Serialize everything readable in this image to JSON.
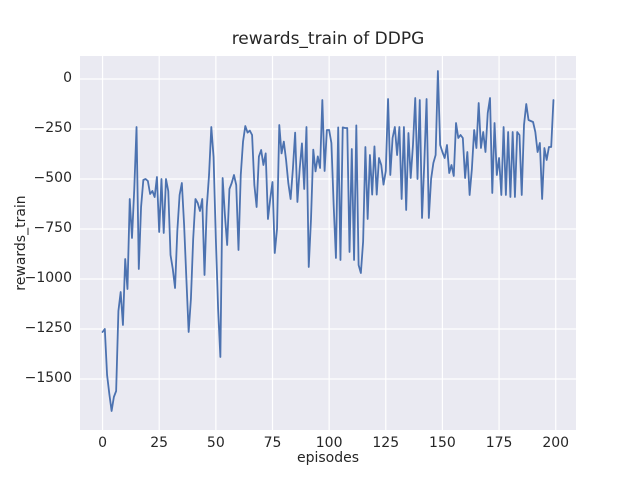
{
  "chart_data": {
    "type": "line",
    "title": "rewards_train of DDPG",
    "xlabel": "episodes",
    "ylabel": "rewards_train",
    "series": [
      {
        "name": "rewards_train",
        "x_start": 0,
        "x_step": 1,
        "values": [
          -1265,
          -1250,
          -1480,
          -1575,
          -1660,
          -1590,
          -1560,
          -1160,
          -1065,
          -1230,
          -900,
          -1050,
          -600,
          -795,
          -550,
          -240,
          -950,
          -640,
          -505,
          -500,
          -510,
          -575,
          -560,
          -590,
          -490,
          -765,
          -500,
          -770,
          -500,
          -560,
          -880,
          -950,
          -1045,
          -760,
          -580,
          -520,
          -730,
          -1000,
          -1265,
          -1100,
          -800,
          -600,
          -620,
          -660,
          -600,
          -980,
          -640,
          -480,
          -240,
          -390,
          -800,
          -1150,
          -1390,
          -495,
          -680,
          -830,
          -550,
          -520,
          -480,
          -530,
          -855,
          -480,
          -313,
          -235,
          -268,
          -258,
          -280,
          -530,
          -640,
          -388,
          -355,
          -430,
          -372,
          -700,
          -600,
          -515,
          -870,
          -750,
          -230,
          -372,
          -313,
          -405,
          -522,
          -600,
          -450,
          -268,
          -615,
          -450,
          -322,
          -550,
          -240,
          -940,
          -700,
          -353,
          -462,
          -387,
          -445,
          -105,
          -460,
          -255,
          -255,
          -320,
          -630,
          -895,
          -242,
          -905,
          -242,
          -245,
          -245,
          -865,
          -350,
          -905,
          -232,
          -930,
          -970,
          -813,
          -340,
          -700,
          -380,
          -578,
          -337,
          -578,
          -395,
          -430,
          -528,
          -460,
          -100,
          -480,
          -295,
          -240,
          -380,
          -240,
          -600,
          -240,
          -655,
          -270,
          -495,
          -330,
          -95,
          -500,
          -105,
          -695,
          -420,
          -100,
          -695,
          -500,
          -420,
          -380,
          40,
          -330,
          -365,
          -395,
          -330,
          -470,
          -430,
          -485,
          -220,
          -295,
          -280,
          -295,
          -495,
          -365,
          -580,
          -450,
          -255,
          -345,
          -120,
          -345,
          -265,
          -365,
          -170,
          -95,
          -570,
          -220,
          -480,
          -395,
          -580,
          -240,
          -580,
          -265,
          -590,
          -265,
          -590,
          -265,
          -280,
          -580,
          -230,
          -125,
          -205,
          -210,
          -215,
          -265,
          -365,
          -320,
          -600,
          -345,
          -405,
          -340,
          -340,
          -105
        ]
      }
    ],
    "x_ticks": [
      0,
      25,
      50,
      75,
      100,
      125,
      150,
      175,
      200
    ],
    "x_tick_labels": [
      "0",
      "25",
      "50",
      "75",
      "100",
      "125",
      "150",
      "175",
      "200"
    ],
    "y_ticks": [
      0,
      -250,
      -500,
      -750,
      -1000,
      -1250,
      -1500
    ],
    "y_tick_labels": [
      "0",
      "−250",
      "−500",
      "−750",
      "−1000",
      "−1250",
      "−1500"
    ],
    "xlim": [
      -9.95,
      208.95
    ],
    "ylim": [
      -1755,
      115
    ],
    "grid": true,
    "legend": false,
    "style": {
      "line_color": "#4C72B0",
      "line_width": 1.8,
      "panel_color": "#EAEAF2",
      "grid_color": "#FFFFFF",
      "text_color": "#262626",
      "figure_color": "#FFFFFF"
    }
  }
}
